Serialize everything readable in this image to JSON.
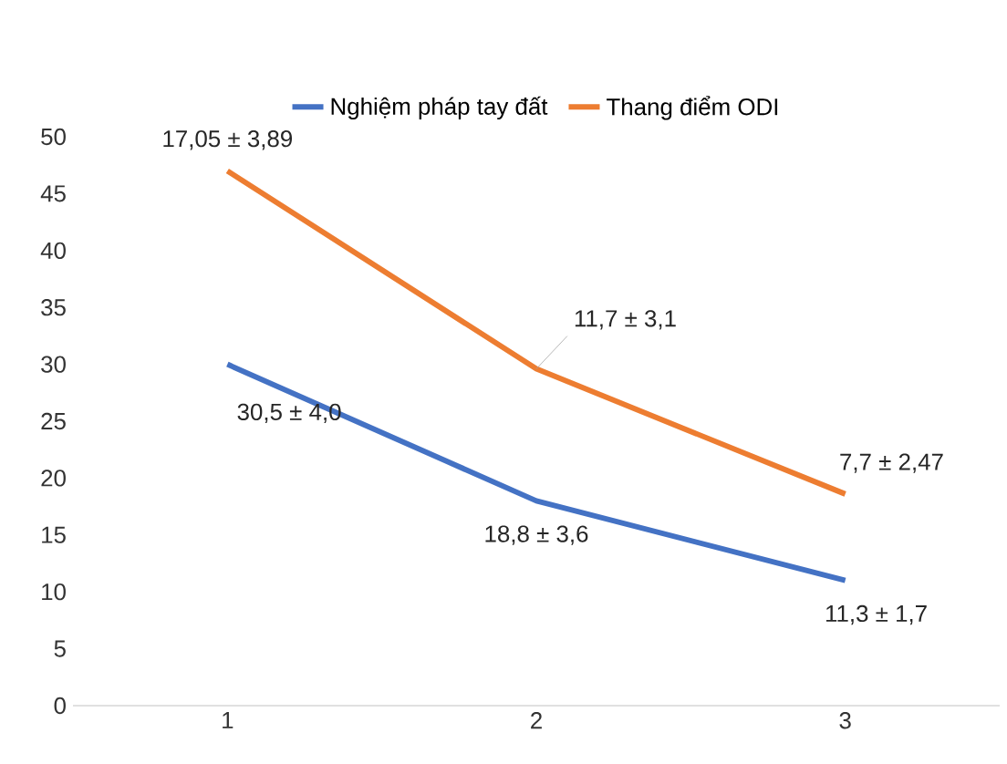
{
  "chart_data": {
    "type": "line",
    "categories": [
      "1",
      "2",
      "3"
    ],
    "series": [
      {
        "name": "Nghiệm pháp tay đất",
        "color": "#4472c4",
        "values": [
          30,
          18,
          11
        ]
      },
      {
        "name": "Thang điểm ODI",
        "color": "#ed7d31",
        "values": [
          47,
          29.6,
          18.6
        ]
      }
    ],
    "ylim": [
      0,
      50
    ],
    "yticks": [
      0,
      5,
      10,
      15,
      20,
      25,
      30,
      35,
      40,
      45,
      50
    ],
    "grid": false,
    "legend": "top",
    "marker": "none",
    "line_style": "solid",
    "annotations": [
      {
        "text": "17,05 ± 3,89",
        "x": "1",
        "y": 47
      },
      {
        "text": "11,7 ± 3,1",
        "x": "2",
        "y": 29.6
      },
      {
        "text": "7,7 ± 2,47",
        "x": "3",
        "y": 18.6
      },
      {
        "text": "30,5 ± 4,0",
        "x": "1",
        "y": 30
      },
      {
        "text": "18,8 ± 3,6",
        "x": "2",
        "y": 18
      },
      {
        "text": "11,3 ± 1,7",
        "x": "3",
        "y": 11
      }
    ]
  }
}
